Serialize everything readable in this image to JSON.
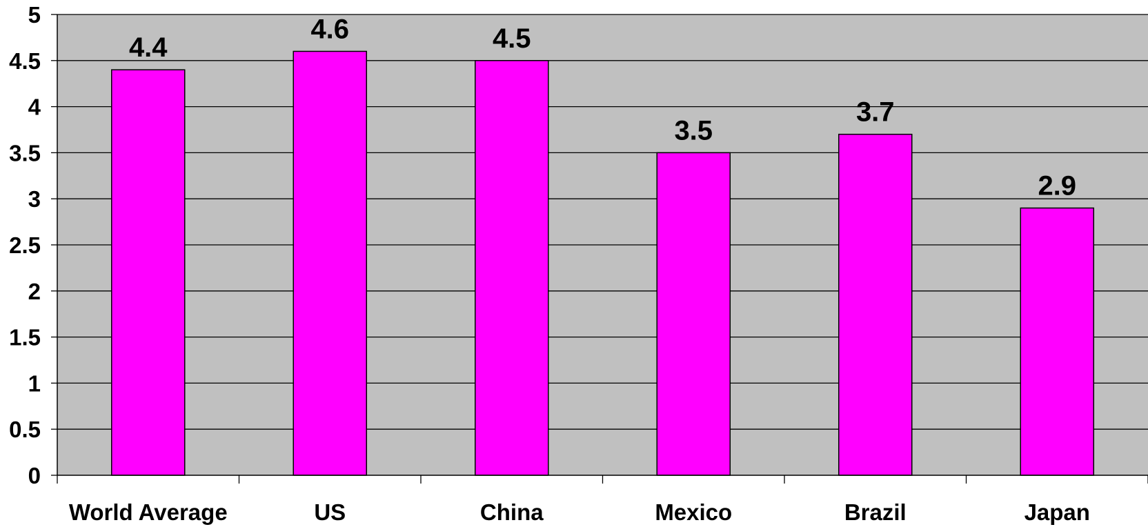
{
  "chart_data": {
    "type": "bar",
    "categories": [
      "World Average",
      "US",
      "China",
      "Mexico",
      "Brazil",
      "Japan"
    ],
    "values": [
      4.4,
      4.6,
      4.5,
      3.5,
      3.7,
      2.9
    ],
    "data_labels": [
      "4.4",
      "4.6",
      "4.5",
      "3.5",
      "3.7",
      "2.9"
    ],
    "y_ticks": [
      "0",
      "0.5",
      "1",
      "1.5",
      "2",
      "2.5",
      "3",
      "3.5",
      "4",
      "4.5",
      "5"
    ],
    "ylim": [
      0,
      5
    ],
    "title": "",
    "xlabel": "",
    "ylabel": "",
    "grid": true,
    "legend": "none",
    "colors": {
      "bar_fill": "#ff00ff",
      "bar_stroke": "#000000",
      "plot_background": "#c0c0c0",
      "gridline": "#000000"
    }
  }
}
